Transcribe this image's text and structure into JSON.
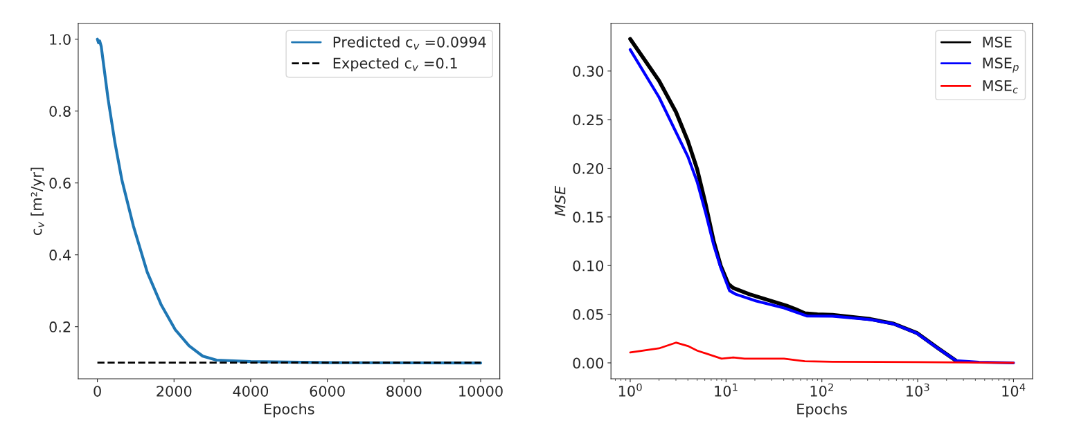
{
  "chart_data": [
    {
      "type": "line",
      "xlabel": "Epochs",
      "ylabel": "c$_{v}$ [m²/yr]",
      "legend": "top right",
      "xlim": [
        -500,
        10500
      ],
      "ylim": [
        0.055,
        1.044
      ],
      "xticks": [
        0,
        2000,
        4000,
        6000,
        8000,
        10000
      ],
      "yticks": [
        0.2,
        0.4,
        0.6,
        0.8,
        {
          "value": 1,
          "label": "1.0"
        }
      ],
      "series": [
        {
          "name": "Predicted c$_{v}$ =0.0994",
          "color": "#1f77b4",
          "line_style": "solid",
          "x": [
            0,
            30,
            60,
            100,
            280,
            460,
            640,
            940,
            1300,
            1660,
            2030,
            2390,
            2750,
            3110,
            4000,
            6000,
            10000
          ],
          "values": [
            1.0,
            0.99,
            0.995,
            0.98,
            0.833,
            0.711,
            0.608,
            0.48,
            0.352,
            0.262,
            0.192,
            0.147,
            0.118,
            0.107,
            0.103,
            0.1,
            0.099
          ]
        },
        {
          "name": "Expected c$_{v}$ =0.1",
          "color": "#000000",
          "line_style": "dashed",
          "x": [
            0,
            10000
          ],
          "values": [
            0.1,
            0.1
          ]
        }
      ]
    },
    {
      "type": "line",
      "xlabel": "Epochs",
      "ylabel": "MSE",
      "legend": "top right",
      "log": "x",
      "xlim": [
        0.63,
        15800
      ],
      "ylim": [
        -0.0164,
        0.349
      ],
      "xticks": [
        {
          "value": 1,
          "label": "10$^{0}$"
        },
        {
          "value": 10,
          "label": "10$^{1}$"
        },
        {
          "value": 100,
          "label": "10$^{2}$"
        },
        {
          "value": 1000,
          "label": "10$^{3}$"
        },
        {
          "value": 10000,
          "label": "10$^{4}$"
        }
      ],
      "yticks": [
        {
          "value": 0,
          "label": "0.00"
        },
        {
          "value": 0.05,
          "label": "0.05"
        },
        {
          "value": 0.1,
          "label": "0.10"
        },
        {
          "value": 0.15,
          "label": "0.15"
        },
        {
          "value": 0.2,
          "label": "0.20"
        },
        {
          "value": 0.25,
          "label": "0.25"
        },
        {
          "value": 0.3,
          "label": "0.30"
        }
      ],
      "series": [
        {
          "name": "MSE",
          "color": "#000000",
          "line_style": "solid",
          "x": [
            1,
            2,
            3,
            4,
            5,
            6.1,
            7.4,
            8.8,
            10.6,
            11.9,
            17.5,
            27.3,
            42.6,
            53.3,
            66.5,
            90,
            129,
            322,
            561,
            977,
            1611,
            2510
          ],
          "values": [
            0.333,
            0.29,
            0.258,
            0.228,
            0.199,
            0.164,
            0.126,
            0.1,
            0.081,
            0.077,
            0.0706,
            0.0647,
            0.0588,
            0.0552,
            0.051,
            0.0498,
            0.0493,
            0.045,
            0.0403,
            0.0308,
            0.0154,
            0.0023
          ]
        },
        {
          "name": "MSE$_{p}$",
          "color": "#0000ff",
          "line_style": "solid",
          "x": [
            1,
            2,
            4,
            5,
            6.1,
            7.4,
            8.8,
            10.9,
            12.6,
            20.7,
            40.3,
            70.3,
            129,
            322,
            561,
            977,
            1611,
            2510,
            4370,
            10000
          ],
          "values": [
            0.322,
            0.273,
            0.212,
            0.186,
            0.155,
            0.122,
            0.098,
            0.0741,
            0.0706,
            0.0635,
            0.0564,
            0.0481,
            0.048,
            0.0445,
            0.04,
            0.0305,
            0.0152,
            0.0023,
            0.0007,
            0.0
          ]
        },
        {
          "name": "MSE$_{c}$",
          "color": "#ff0000",
          "line_style": "solid",
          "x": [
            1,
            2,
            3,
            4,
            5,
            9,
            11.9,
            15.6,
            40.3,
            66.5,
            129,
            1000,
            10000
          ],
          "values": [
            0.0107,
            0.0149,
            0.0208,
            0.0173,
            0.0126,
            0.0043,
            0.0055,
            0.0043,
            0.0043,
            0.0017,
            0.0012,
            0.0008,
            0.0
          ]
        }
      ]
    }
  ]
}
